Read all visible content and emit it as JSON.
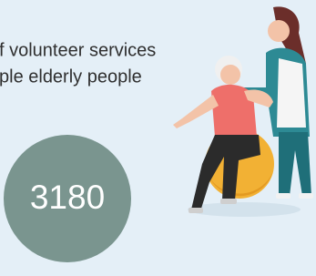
{
  "text": {
    "line1": "f volunteer services",
    "line2": "ple elderly people"
  },
  "stat": {
    "value": 3180
  }
}
